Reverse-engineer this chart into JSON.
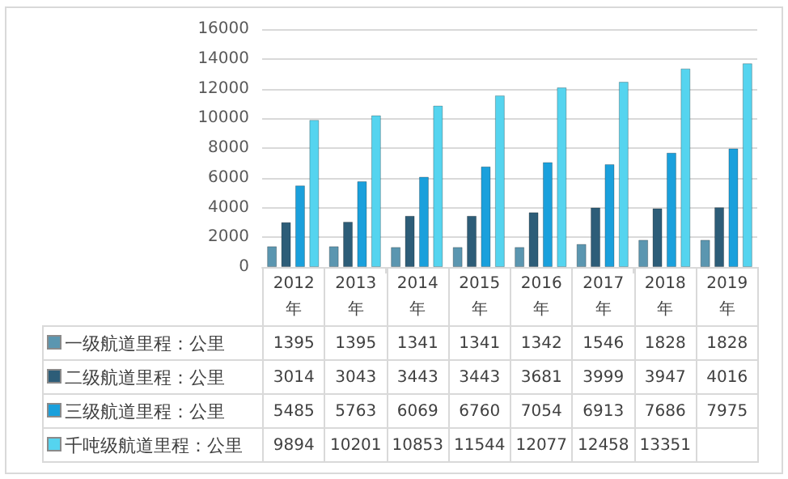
{
  "chart_data": {
    "type": "bar",
    "categories": [
      "2012年",
      "2013年",
      "2014年",
      "2015年",
      "2016年",
      "2017年",
      "2018年",
      "2019年"
    ],
    "series": [
      {
        "name": "一级航道里程：公里",
        "color": "#5b96b0",
        "values": [
          1395,
          1395,
          1341,
          1341,
          1342,
          1546,
          1828,
          1828
        ],
        "value_labels": [
          "1395",
          "1395",
          "1341",
          "1341",
          "1342",
          "1546",
          "1828",
          "1828"
        ]
      },
      {
        "name": "二级航道里程：公里",
        "color": "#2d5d78",
        "values": [
          3014,
          3043,
          3443,
          3443,
          3681,
          3999,
          3947,
          4016
        ],
        "value_labels": [
          "3014",
          "3043",
          "3443",
          "3443",
          "3681",
          "3999",
          "3947",
          "4016"
        ]
      },
      {
        "name": "三级航道里程：公里",
        "color": "#1aa0dc",
        "values": [
          5485,
          5763,
          6069,
          6760,
          7054,
          6913,
          7686,
          7975
        ],
        "value_labels": [
          "5485",
          "5763",
          "6069",
          "6760",
          "7054",
          "6913",
          "7686",
          "7975"
        ]
      },
      {
        "name": "千吨级航道里程：公里",
        "color": "#55d4ef",
        "values": [
          9894,
          10201,
          10853,
          11544,
          12077,
          12458,
          13351,
          13700
        ],
        "value_labels": [
          "9894",
          "10201",
          "10853",
          "11544",
          "12077",
          "12458",
          "13351",
          null
        ]
      }
    ],
    "ylim": [
      0,
      16000
    ],
    "yticks": [
      0,
      2000,
      4000,
      6000,
      8000,
      10000,
      12000,
      14000,
      16000
    ],
    "grid": "y",
    "legend": "bottom"
  }
}
